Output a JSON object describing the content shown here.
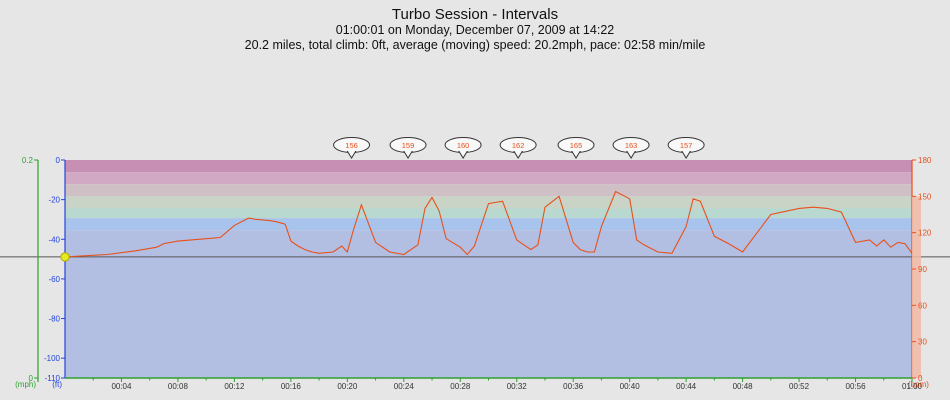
{
  "header": {
    "title": "Turbo Session - Intervals",
    "subtitle": "01:00:01 on Monday, December 07, 2009 at 14:22",
    "summary": "20.2 miles, total climb: 0ft, average (moving) speed: 20.2mph, pace: 02:58 min/mile"
  },
  "chart_data": {
    "type": "line",
    "title": "Turbo Session - Intervals",
    "x_unit": "minutes",
    "x_range": [
      0,
      60
    ],
    "x_tick_labels": [
      "00:04",
      "00:08",
      "00:12",
      "00:16",
      "00:20",
      "00:24",
      "00:28",
      "00:32",
      "00:36",
      "00:40",
      "00:44",
      "00:48",
      "00:52",
      "00:56",
      "01:00"
    ],
    "axes": {
      "altitude": {
        "unit_label": "(ft)",
        "range": [
          -110,
          0
        ],
        "ticks": [
          "0",
          "-20",
          "-40",
          "-60",
          "-80",
          "-100",
          "-110"
        ]
      },
      "speed": {
        "unit_label": "(mph)",
        "range": [
          0,
          0.2
        ],
        "ticks": [
          "0.2",
          "0"
        ]
      },
      "heart_rate": {
        "unit_label": "(bpm)",
        "range": [
          0,
          180
        ],
        "ticks": [
          "180",
          "150",
          "120",
          "90",
          "60",
          "30",
          "0"
        ]
      }
    },
    "zones": [
      {
        "from": 170,
        "to": 180,
        "color": "#c88fb5"
      },
      {
        "from": 160,
        "to": 170,
        "color": "#d1a9c4"
      },
      {
        "from": 150,
        "to": 160,
        "color": "#cfc0c5"
      },
      {
        "from": 140,
        "to": 150,
        "color": "#c9d4c7"
      },
      {
        "from": 132,
        "to": 140,
        "color": "#b8d8d0"
      },
      {
        "from": 122,
        "to": 132,
        "color": "#a9c4ec"
      },
      {
        "from": 0,
        "to": 122,
        "color": "#b3bfe2"
      }
    ],
    "series": [
      {
        "axis": "heart_rate",
        "color": "#e8501a",
        "x": [
          0,
          3,
          5,
          6.5,
          7,
          8,
          10,
          11,
          12,
          12.5,
          13,
          13.5,
          14.5,
          15,
          15.6,
          16,
          16.5,
          17,
          17.5,
          18,
          19,
          19.6,
          20,
          20.4,
          21,
          22,
          23,
          24,
          25,
          25.5,
          26,
          26.5,
          27,
          28,
          28.5,
          29,
          30,
          31,
          32,
          32.5,
          33,
          33.5,
          34,
          35,
          36,
          36.5,
          37,
          37.5,
          38,
          39,
          40,
          40.5,
          41,
          42,
          43,
          44,
          44.5,
          45,
          46,
          47,
          48,
          50,
          52,
          53,
          54,
          55,
          56,
          57,
          57.5,
          58,
          58.5,
          59,
          59.5,
          60
        ],
        "y": [
          100,
          102,
          105,
          108,
          111,
          113,
          115,
          116,
          126,
          129,
          132,
          131,
          130,
          129,
          127,
          113,
          109,
          106,
          104,
          103,
          104,
          109,
          104,
          121,
          143,
          112,
          104,
          102,
          110,
          140,
          149,
          138,
          115,
          108,
          102,
          109,
          144,
          146,
          114,
          110,
          106,
          110,
          141,
          150,
          112,
          106,
          104,
          104,
          125,
          154,
          148,
          114,
          110,
          104,
          103,
          125,
          148,
          146,
          117,
          111,
          104,
          135,
          140,
          141,
          140,
          137,
          112,
          114,
          109,
          114,
          108,
          112,
          111,
          103
        ]
      }
    ],
    "bubbles": [
      {
        "x": 20.3,
        "label": "156"
      },
      {
        "x": 24.3,
        "label": "159"
      },
      {
        "x": 28.2,
        "label": "160"
      },
      {
        "x": 32.1,
        "label": "162"
      },
      {
        "x": 36.2,
        "label": "165"
      },
      {
        "x": 40.1,
        "label": "163"
      },
      {
        "x": 44.0,
        "label": "157"
      }
    ],
    "marker": {
      "x": 0,
      "hr": 100,
      "color": "#e8e820"
    }
  }
}
